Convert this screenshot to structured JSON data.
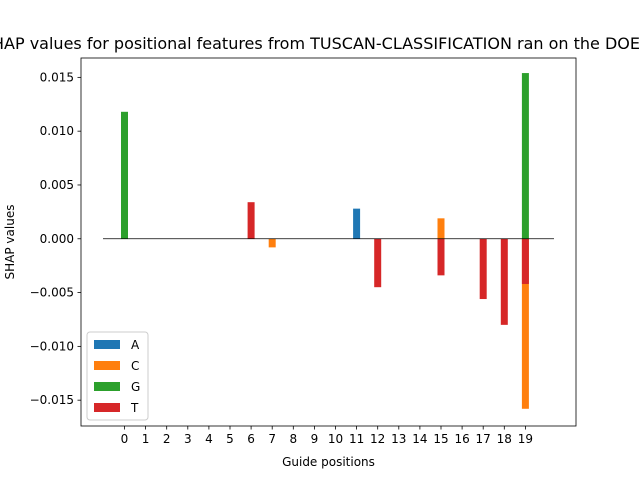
{
  "chart_data": {
    "type": "bar",
    "title": "SHAP values for positional features from TUSCAN-CLASSIFICATION ran on the DOENCH",
    "xlabel": "Guide positions",
    "ylabel": "SHAP values",
    "categories": [
      "0",
      "1",
      "2",
      "3",
      "4",
      "5",
      "6",
      "7",
      "8",
      "9",
      "10",
      "11",
      "12",
      "13",
      "14",
      "15",
      "16",
      "17",
      "18",
      "19"
    ],
    "ylim": [
      -0.0174,
      0.0168
    ],
    "yticks": [
      -0.015,
      -0.01,
      -0.005,
      0.0,
      0.005,
      0.01,
      0.015
    ],
    "ytick_labels": [
      "−0.015",
      "−0.010",
      "−0.005",
      "0.000",
      "0.005",
      "0.010",
      "0.015"
    ],
    "grid": false,
    "legend_position": "bottom-left",
    "colors": {
      "A": "#1f77b4",
      "C": "#ff7f0e",
      "G": "#2ca02c",
      "T": "#d62728"
    },
    "series": [
      {
        "name": "A",
        "values": [
          0,
          0,
          0,
          0,
          0,
          0,
          0,
          0,
          0,
          0,
          0,
          0.0028,
          0,
          0,
          0,
          0,
          0,
          0,
          0,
          0
        ]
      },
      {
        "name": "C",
        "values": [
          0,
          0,
          0,
          0,
          0,
          0,
          0,
          -0.0008,
          0,
          0,
          0,
          0,
          0,
          0,
          0,
          0.0019,
          0,
          0,
          0,
          -0.0158
        ]
      },
      {
        "name": "G",
        "values": [
          0.0118,
          0,
          0,
          0,
          0,
          0,
          0,
          0,
          0,
          0,
          0,
          0,
          0,
          0,
          0,
          0,
          0,
          0,
          0,
          0.0154
        ]
      },
      {
        "name": "T",
        "values": [
          0,
          0,
          0,
          0,
          0,
          0,
          0.0034,
          0,
          0,
          0,
          0,
          0,
          -0.0045,
          0,
          0,
          -0.0034,
          0,
          -0.0056,
          -0.008,
          -0.0042
        ]
      }
    ]
  }
}
